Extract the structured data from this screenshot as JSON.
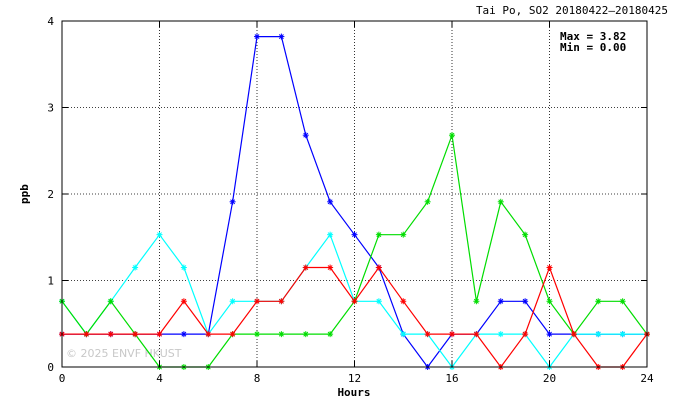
{
  "chart_data": {
    "type": "line",
    "title": "Tai Po, SO2 20180422–20180425",
    "xlabel": "Hours",
    "ylabel": "ppb",
    "xlim": [
      0,
      24
    ],
    "ylim": [
      0,
      4
    ],
    "xticks": [
      0,
      4,
      8,
      12,
      16,
      20,
      24
    ],
    "yticks": [
      0,
      1,
      2,
      3,
      4
    ],
    "grid": true,
    "annotations": {
      "max": "Max = 3.82",
      "min": "Min = 0.00"
    },
    "watermark": "© 2025 ENVF HKUST",
    "x": [
      0,
      1,
      2,
      3,
      4,
      5,
      6,
      7,
      8,
      9,
      10,
      11,
      12,
      13,
      14,
      15,
      16,
      17,
      18,
      19,
      20,
      21,
      22,
      23,
      24
    ],
    "series": [
      {
        "color": "#0000ff",
        "values": [
          0.38,
          0.38,
          0.38,
          0.38,
          0.38,
          0.38,
          0.38,
          1.91,
          3.82,
          3.82,
          2.68,
          1.91,
          1.53,
          1.15,
          0.38,
          0.0,
          0.38,
          0.38,
          0.76,
          0.76,
          0.38,
          0.38,
          0.38,
          0.38,
          0.38
        ]
      },
      {
        "color": "#00ffff",
        "values": [
          0.76,
          0.38,
          0.76,
          1.15,
          1.53,
          1.15,
          0.38,
          0.76,
          0.76,
          0.76,
          1.15,
          1.53,
          0.76,
          0.76,
          0.38,
          0.38,
          0.0,
          0.38,
          0.38,
          0.38,
          0.0,
          0.38,
          0.38,
          0.38,
          0.38
        ]
      },
      {
        "color": "#00dd00",
        "values": [
          0.76,
          0.38,
          0.76,
          0.38,
          0.0,
          0.0,
          0.0,
          0.38,
          0.38,
          0.38,
          0.38,
          0.38,
          0.76,
          1.53,
          1.53,
          1.91,
          2.68,
          0.76,
          1.91,
          1.53,
          0.76,
          0.38,
          0.76,
          0.76,
          0.38
        ]
      },
      {
        "color": "#ff0000",
        "values": [
          0.38,
          0.38,
          0.38,
          0.38,
          0.38,
          0.76,
          0.38,
          0.38,
          0.76,
          0.76,
          1.15,
          1.15,
          0.76,
          1.15,
          0.76,
          0.38,
          0.38,
          0.38,
          0.0,
          0.38,
          1.15,
          0.38,
          0.0,
          0.0,
          0.38
        ]
      }
    ]
  }
}
